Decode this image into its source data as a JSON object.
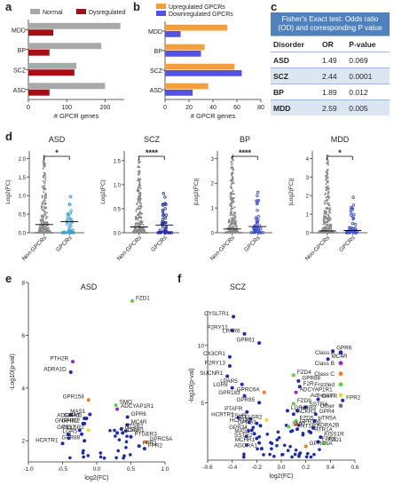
{
  "panels": {
    "a": "a",
    "b": "b",
    "c": "c",
    "d": "d",
    "e": "e",
    "f": "f"
  },
  "table_c": {
    "title": "Fisher's Exact test: Odds ratio (OD) and corresponding P value",
    "headers": [
      "Disorder",
      "OR",
      "P-value"
    ],
    "rows": [
      [
        "ASD",
        "1.49",
        "0.069"
      ],
      [
        "SCZ",
        "2.44",
        "0.0001"
      ],
      [
        "BP",
        "1.89",
        "0.012"
      ],
      [
        "MDD",
        "2.59",
        "0.005"
      ]
    ]
  },
  "colors": {
    "normal": "#a8a8a8",
    "dysregulated": "#a40e14",
    "upregulated": "#f3a03c",
    "downregulated": "#5353e0",
    "classA": "#1c2bb7",
    "classB": "#9a27c4",
    "classC": "#f07b1c",
    "frizzled": "#5bd23a",
    "adhesion": "#f0d43a",
    "other": "#777777"
  },
  "chart_data": [
    {
      "id": "a",
      "type": "bar",
      "orientation": "horizontal",
      "categories": [
        "MDD",
        "BP",
        "SCZ",
        "ASD"
      ],
      "series": [
        {
          "name": "Normal",
          "values": [
            240,
            190,
            125,
            200
          ]
        },
        {
          "name": "Dysregulated",
          "values": [
            65,
            55,
            120,
            55
          ]
        }
      ],
      "xlabel": "# GPCR genes",
      "xticks": [
        0,
        100,
        200
      ],
      "xlim": [
        0,
        250
      ],
      "legend": "top"
    },
    {
      "id": "b",
      "type": "bar",
      "orientation": "horizontal",
      "categories": [
        "MDD",
        "BP",
        "SCZ",
        "ASD"
      ],
      "series": [
        {
          "name": "Upregulated GPCRs",
          "values": [
            52,
            33,
            58,
            36
          ]
        },
        {
          "name": "Downregulated GPCRs",
          "values": [
            13,
            30,
            64,
            23
          ]
        }
      ],
      "xlabel": "# GPCR genes",
      "xticks": [
        0,
        20,
        40,
        60,
        80
      ],
      "xlim": [
        0,
        80
      ],
      "legend": "top"
    },
    {
      "id": "d",
      "type": "scatter",
      "subtype": "dot-plot",
      "panels": [
        {
          "title": "ASD",
          "categories": [
            "Non-GPCRs",
            "GPCRs"
          ],
          "ylabel": "Log2(FC)",
          "yticks": [
            "0.0",
            "0.5",
            "1.0",
            "1.5",
            "2.0"
          ],
          "ylim": [
            0,
            2.2
          ],
          "medians": [
            0.22,
            0.3
          ],
          "significance": "*"
        },
        {
          "title": "SCZ",
          "categories": [
            "Non-GPCRs",
            "GPCRs"
          ],
          "ylabel": "Log2(FC)",
          "yticks": [
            "0.0",
            "0.5",
            "1.0",
            "1.5"
          ],
          "ylim": [
            0,
            1.7
          ],
          "medians": [
            0.12,
            0.16
          ],
          "significance": "****"
        },
        {
          "title": "BP",
          "categories": [
            "Non-GPCRs",
            "GPCRs"
          ],
          "ylabel": "|Log2(FC)|",
          "yticks": [
            "0",
            "1",
            "2",
            "3"
          ],
          "ylim": [
            0,
            3.3
          ],
          "medians": [
            0.15,
            0.25
          ],
          "significance": "****"
        },
        {
          "title": "MDD",
          "categories": [
            "Non-GPCRs",
            "GPCRs"
          ],
          "ylabel": "|Log2(FC)|",
          "yticks": [
            "0",
            "1",
            "2",
            "3",
            "4"
          ],
          "ylim": [
            0,
            4.4
          ],
          "medians": [
            0.1,
            0.12
          ],
          "significance": "*"
        }
      ]
    },
    {
      "id": "e",
      "type": "scatter",
      "title": "ASD",
      "xlabel": "log2(FC)",
      "ylabel": "-Log10(p-val)",
      "xlim": [
        -1.0,
        1.0
      ],
      "ylim": [
        1.2,
        8
      ],
      "xticks": [
        "-1.0",
        "-0.5",
        "0.0",
        "0.5",
        "1.0"
      ],
      "yticks": [
        "2",
        "4",
        "6",
        "8"
      ],
      "points": [
        {
          "label": "FZD1",
          "x": 0.52,
          "y": 7.3,
          "cls": "frizzled"
        },
        {
          "label": "PTH2R",
          "x": -0.35,
          "y": 5.0,
          "cls": "classB"
        },
        {
          "label": "ADRA1D",
          "x": -0.38,
          "y": 4.6,
          "cls": "classA"
        },
        {
          "label": "GPR158",
          "x": -0.12,
          "y": 3.55,
          "cls": "classC"
        },
        {
          "label": "SMO",
          "x": 0.28,
          "y": 3.35,
          "cls": "frizzled"
        },
        {
          "label": "ADCYAP1R1",
          "x": 0.3,
          "y": 3.2,
          "cls": "classB"
        },
        {
          "label": "MAS1",
          "x": -0.1,
          "y": 3.0,
          "cls": "classA"
        },
        {
          "label": "ADORA1",
          "x": -0.18,
          "y": 2.85,
          "cls": "classA"
        },
        {
          "label": "GPR65",
          "x": -0.15,
          "y": 2.85,
          "cls": "classA"
        },
        {
          "label": "GPR6",
          "x": 0.45,
          "y": 2.9,
          "cls": "classA"
        },
        {
          "label": "GNRHR2",
          "x": -0.2,
          "y": 2.65,
          "cls": "classA"
        },
        {
          "label": "GPR12",
          "x": -0.18,
          "y": 2.65,
          "cls": "classA"
        },
        {
          "label": "MC4R",
          "x": 0.45,
          "y": 2.6,
          "cls": "classA"
        },
        {
          "label": "NTSR2",
          "x": 0.36,
          "y": 2.45,
          "cls": "classA"
        },
        {
          "label": "GPR37",
          "x": -0.25,
          "y": 2.4,
          "cls": "classA"
        },
        {
          "label": "CELSR2",
          "x": -0.12,
          "y": 2.4,
          "cls": "adhesion"
        },
        {
          "label": "TACR3",
          "x": 0.3,
          "y": 2.3,
          "cls": "classA"
        },
        {
          "label": "C5AR1",
          "x": 0.38,
          "y": 2.3,
          "cls": "classA"
        },
        {
          "label": "LGR5",
          "x": -0.22,
          "y": 2.25,
          "cls": "classA"
        },
        {
          "label": "PTGER3",
          "x": 0.5,
          "y": 2.15,
          "cls": "classA"
        },
        {
          "label": "GPRC5A",
          "x": 0.72,
          "y": 1.95,
          "cls": "classC"
        },
        {
          "label": "GPR88",
          "x": -0.18,
          "y": 2.0,
          "cls": "classA"
        },
        {
          "label": "HCRTR1",
          "x": -0.5,
          "y": 1.9,
          "cls": "classA"
        },
        {
          "label": "FPR1",
          "x": 0.62,
          "y": 1.8,
          "cls": "classA"
        },
        {
          "label": "FPR2",
          "x": 0.7,
          "y": 1.7,
          "cls": "classA"
        }
      ]
    },
    {
      "id": "f",
      "type": "scatter",
      "title": "SCZ",
      "xlabel": "log2(FC)",
      "ylabel": "-log10(p-val)",
      "xlim": [
        -0.6,
        0.6
      ],
      "ylim": [
        0,
        13
      ],
      "xticks": [
        "-0.6",
        "-0.4",
        "-0.2",
        "0.0",
        "0.2",
        "0.4",
        "0.6"
      ],
      "yticks": [
        "5",
        "10"
      ],
      "points": [
        {
          "label": "CYSLTR1",
          "x": -0.39,
          "y": 12.5,
          "cls": "classA"
        },
        {
          "label": "P2RY12",
          "x": -0.4,
          "y": 11.3,
          "cls": "classA"
        },
        {
          "label": "LPAR6",
          "x": -0.3,
          "y": 11.0,
          "cls": "classA"
        },
        {
          "label": "GPR61",
          "x": -0.18,
          "y": 10.2,
          "cls": "classA"
        },
        {
          "label": "GPR6",
          "x": 0.42,
          "y": 9.5,
          "cls": "classA"
        },
        {
          "label": "MC4R",
          "x": 0.38,
          "y": 8.8,
          "cls": "classA"
        },
        {
          "label": "CX3CR1",
          "x": -0.42,
          "y": 9.0,
          "cls": "classA"
        },
        {
          "label": "P2RY13",
          "x": -0.42,
          "y": 8.2,
          "cls": "classA"
        },
        {
          "label": "SUCNR1",
          "x": -0.44,
          "y": 7.3,
          "cls": "classA"
        },
        {
          "label": "LGR6",
          "x": -0.4,
          "y": 6.3,
          "cls": "classA"
        },
        {
          "label": "LPAR5",
          "x": -0.32,
          "y": 6.6,
          "cls": "classA"
        },
        {
          "label": "GPR183",
          "x": -0.3,
          "y": 5.6,
          "cls": "classA"
        },
        {
          "label": "GPR85",
          "x": -0.18,
          "y": 5.0,
          "cls": "classA"
        },
        {
          "label": "GPRC6A",
          "x": -0.14,
          "y": 5.9,
          "cls": "classC"
        },
        {
          "label": "FZD4",
          "x": 0.1,
          "y": 7.4,
          "cls": "frizzled"
        },
        {
          "label": "GPR88",
          "x": 0.14,
          "y": 6.9,
          "cls": "classA"
        },
        {
          "label": "F2R",
          "x": 0.15,
          "y": 6.4,
          "cls": "classA"
        },
        {
          "label": "ADCYAP1R1",
          "x": 0.12,
          "y": 5.9,
          "cls": "classB"
        },
        {
          "label": "OXTR",
          "x": 0.3,
          "y": 5.3,
          "cls": "classA"
        },
        {
          "label": "FPR2",
          "x": 0.5,
          "y": 5.2,
          "cls": "classA"
        },
        {
          "label": "FZD9",
          "x": 0.1,
          "y": 4.9,
          "cls": "frizzled"
        },
        {
          "label": "SSTR4",
          "x": 0.2,
          "y": 4.6,
          "cls": "classA"
        },
        {
          "label": "LGR4",
          "x": 0.05,
          "y": 4.3,
          "cls": "classA"
        },
        {
          "label": "HRH3",
          "x": 0.13,
          "y": 4.3,
          "cls": "classA"
        },
        {
          "label": "ACKR3",
          "x": 0.1,
          "y": 4.0,
          "cls": "classA"
        },
        {
          "label": "GPR4",
          "x": 0.28,
          "y": 4.0,
          "cls": "classA"
        },
        {
          "label": "PTAFR",
          "x": -0.28,
          "y": 4.2,
          "cls": "classA"
        },
        {
          "label": "TSHR",
          "x": -0.25,
          "y": 3.6,
          "cls": "classA"
        },
        {
          "label": "HCRTR1",
          "x": -0.35,
          "y": 3.7,
          "cls": "classA"
        },
        {
          "label": "CELSR2",
          "x": -0.12,
          "y": 3.5,
          "cls": "adhesion"
        },
        {
          "label": "HCRTR2",
          "x": -0.2,
          "y": 3.2,
          "cls": "classA"
        },
        {
          "label": "GPR37",
          "x": -0.17,
          "y": 3.0,
          "cls": "classA"
        },
        {
          "label": "HTR5A",
          "x": 0.27,
          "y": 3.4,
          "cls": "classA"
        },
        {
          "label": "FZD5",
          "x": 0.12,
          "y": 3.4,
          "cls": "frizzled"
        },
        {
          "label": "GPR156",
          "x": 0.12,
          "y": 3.1,
          "cls": "classC"
        },
        {
          "label": "GPR34",
          "x": -0.24,
          "y": 2.6,
          "cls": "classA"
        },
        {
          "label": "SMO",
          "x": 0.06,
          "y": 2.9,
          "cls": "frizzled"
        },
        {
          "label": "NTSR2",
          "x": 0.13,
          "y": 2.7,
          "cls": "classA"
        },
        {
          "label": "ADRA2B",
          "x": 0.26,
          "y": 2.8,
          "cls": "classA"
        },
        {
          "label": "MAS1",
          "x": -0.22,
          "y": 2.3,
          "cls": "classA"
        },
        {
          "label": "HTR1A",
          "x": 0.24,
          "y": 2.4,
          "cls": "classA"
        },
        {
          "label": "SSTR2",
          "x": -0.2,
          "y": 1.9,
          "cls": "classA"
        },
        {
          "label": "KISS1R",
          "x": 0.32,
          "y": 2.0,
          "cls": "classA"
        },
        {
          "label": "MCHR1",
          "x": -0.18,
          "y": 1.5,
          "cls": "classA"
        },
        {
          "label": "FPR1",
          "x": 0.3,
          "y": 1.6,
          "cls": "classA"
        },
        {
          "label": "FZD1",
          "x": 0.35,
          "y": 1.5,
          "cls": "frizzled"
        },
        {
          "label": "ADORA1",
          "x": -0.16,
          "y": 1.0,
          "cls": "classA"
        },
        {
          "label": "GPRC5A",
          "x": 0.2,
          "y": 1.2,
          "cls": "classC"
        }
      ],
      "legend": {
        "placement": "right",
        "entries": [
          {
            "label": "Class A",
            "cls": "classA"
          },
          {
            "label": "Class B",
            "cls": "classB"
          },
          {
            "label": "Class C",
            "cls": "classC"
          },
          {
            "label": "Frizzled",
            "cls": "frizzled"
          },
          {
            "label": "Adhesion",
            "cls": "adhesion"
          },
          {
            "label": "Other",
            "cls": "other"
          }
        ]
      }
    }
  ]
}
